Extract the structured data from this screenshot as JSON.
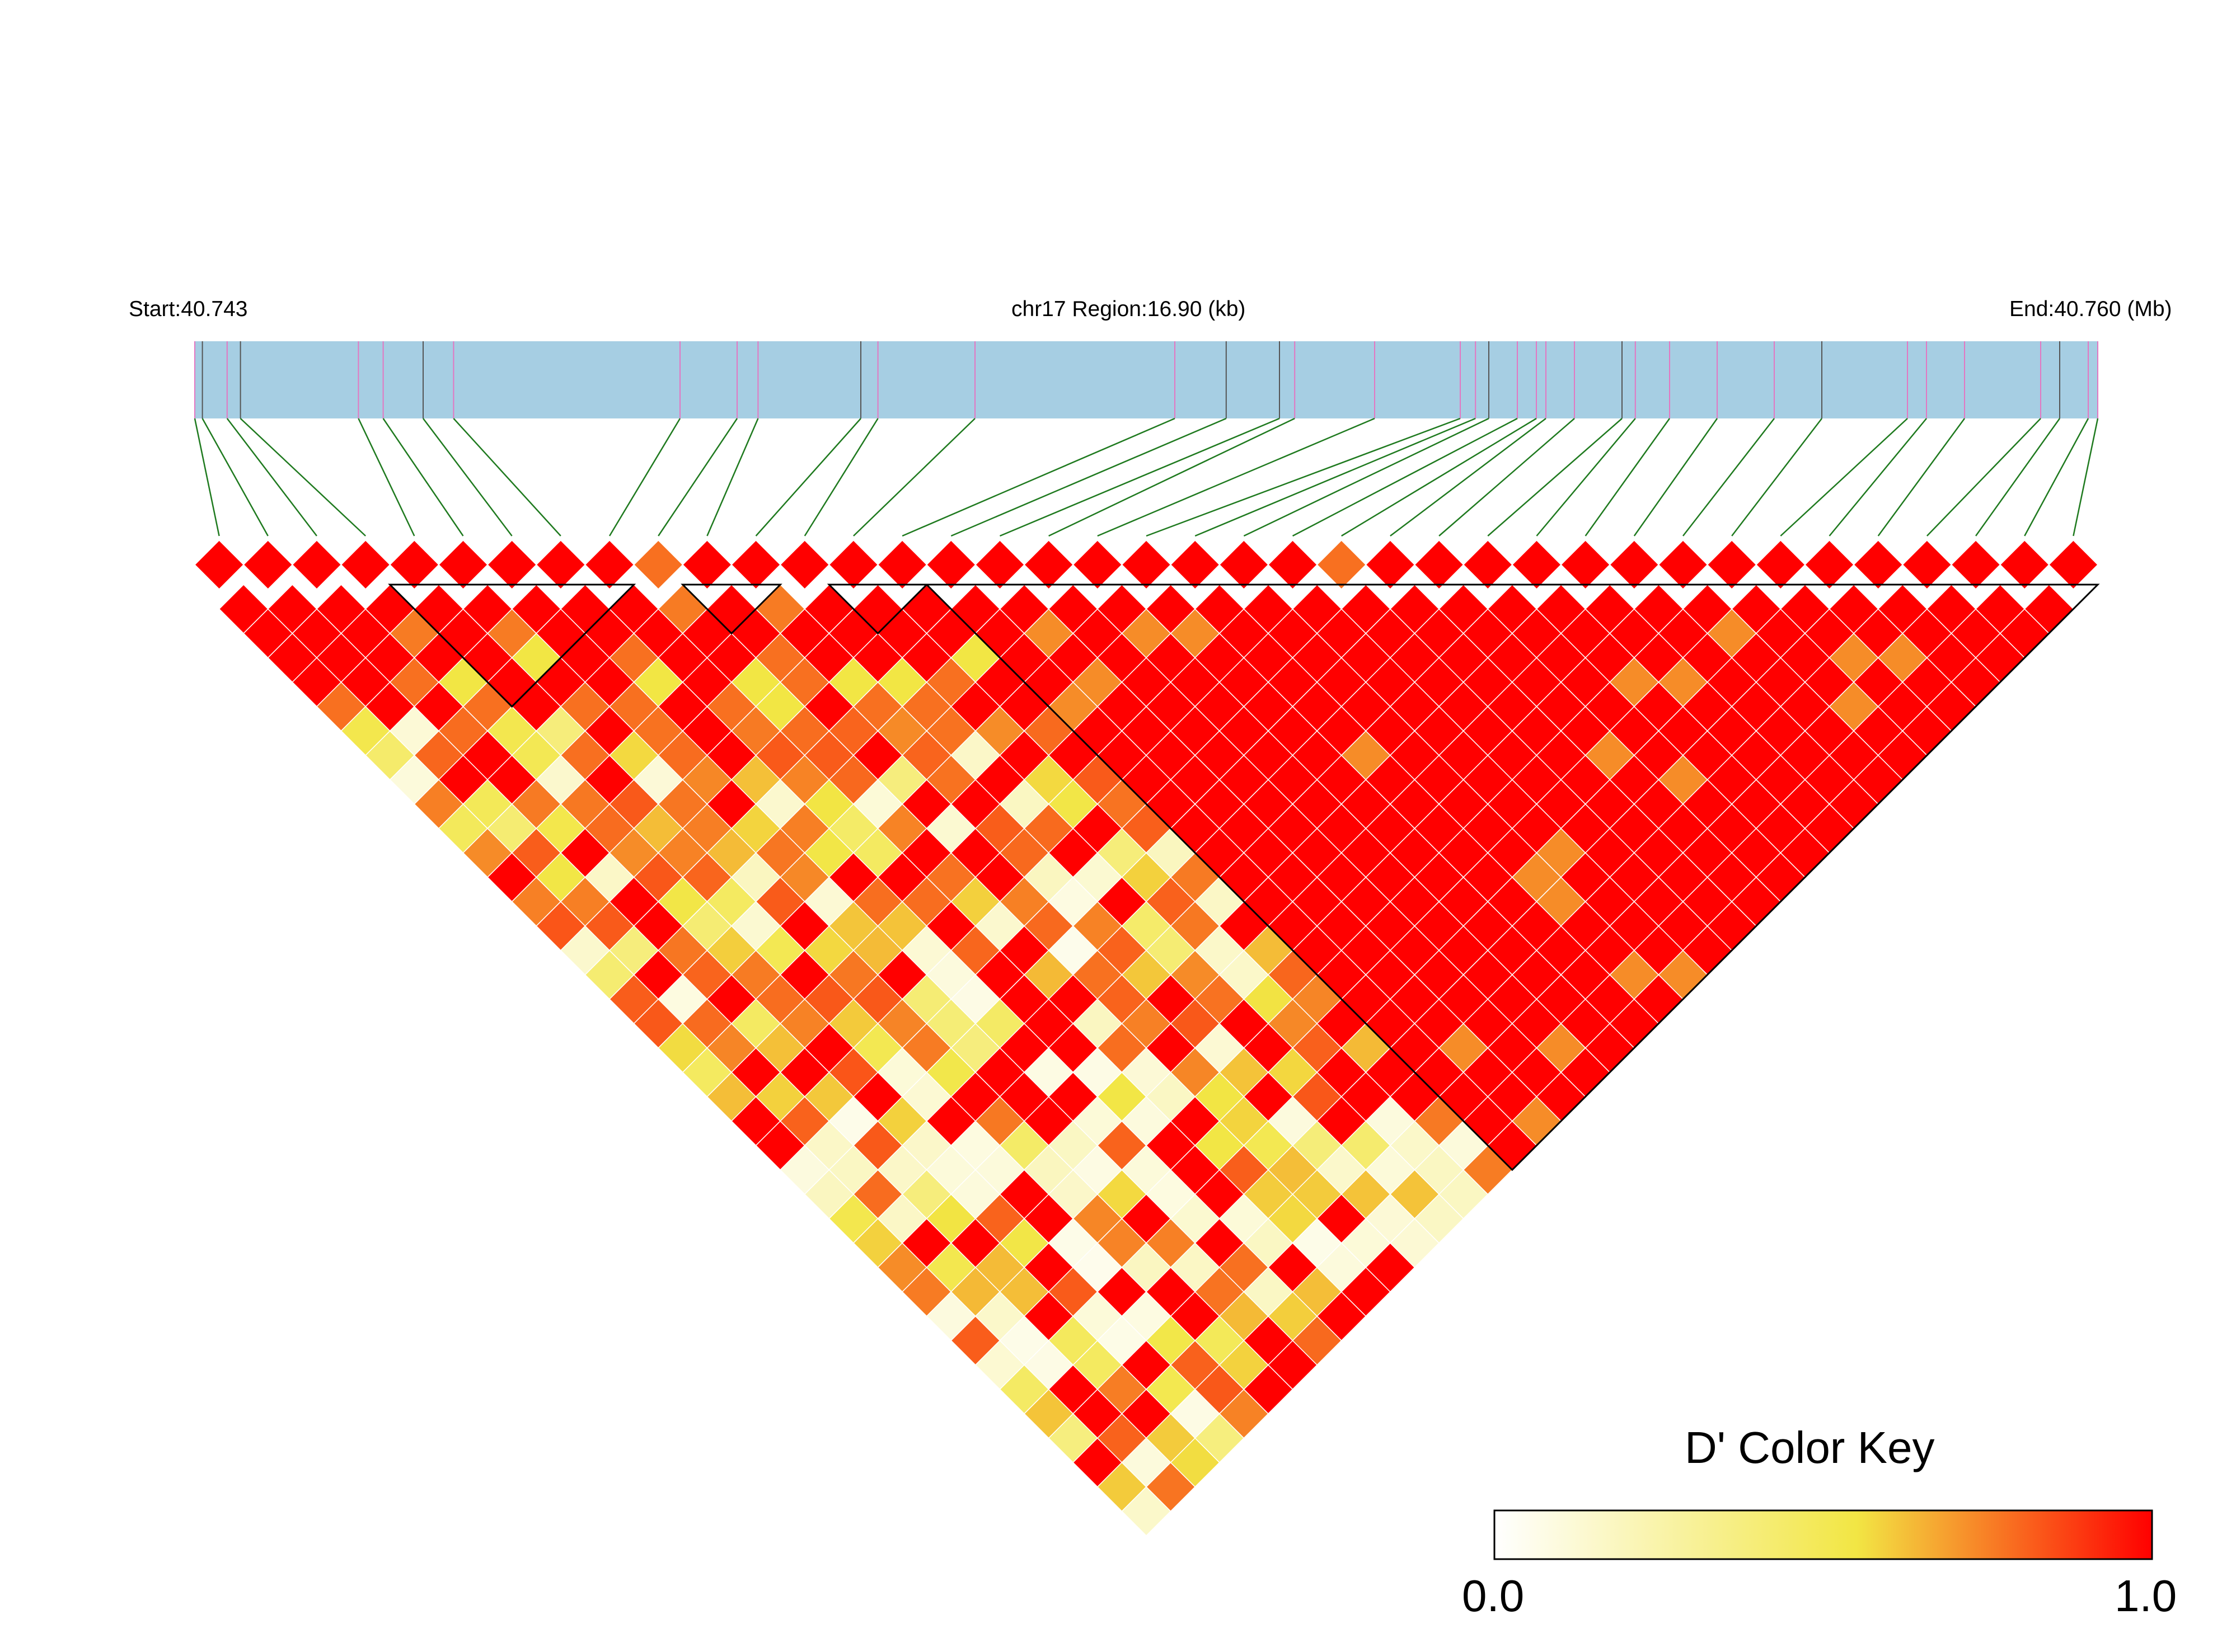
{
  "header": {
    "start_label": "Start:40.743",
    "region_label": "chr17 Region:16.90 (kb)",
    "end_label": "End:40.760 (Mb)"
  },
  "colors": {
    "region_bar": "#a6cee3",
    "snp_tick_pink": "#e377c2",
    "snp_tick_dark": "#555555",
    "connector": "#1f7a1f",
    "block_outline": "#000000",
    "cell_grid": "#ffffff"
  },
  "color_key": {
    "title": "D' Color Key",
    "min_label": "0.0",
    "max_label": "1.0",
    "stops": [
      "#ffffff",
      "#f2e644",
      "#ff0000"
    ]
  },
  "chart_data": {
    "type": "heatmap",
    "description": "LD triangle heatmap of pairwise D' values between SNPs",
    "x_range_mb": [
      40.743,
      40.76
    ],
    "region_kb": 16.9,
    "n_snps": 39,
    "snp_positions_fraction": [
      0.0,
      0.004,
      0.017,
      0.024,
      0.086,
      0.099,
      0.12,
      0.136,
      0.255,
      0.285,
      0.296,
      0.35,
      0.359,
      0.41,
      0.515,
      0.542,
      0.57,
      0.578,
      0.62,
      0.665,
      0.673,
      0.68,
      0.695,
      0.705,
      0.71,
      0.725,
      0.75,
      0.757,
      0.775,
      0.8,
      0.83,
      0.855,
      0.9,
      0.91,
      0.93,
      0.97,
      0.98,
      0.995,
      1.0
    ],
    "haplotype_blocks": [
      {
        "first_snp": 4,
        "last_snp": 8
      },
      {
        "first_snp": 10,
        "last_snp": 11
      },
      {
        "first_snp": 13,
        "last_snp": 14
      },
      {
        "first_snp": 15,
        "last_snp": 38
      }
    ],
    "value_range": [
      0.0,
      1.0
    ],
    "dprime_pattern": {
      "strong_ld_block": "SNPs 15-38 almost all D' = 1.0",
      "weak_ld_region": "Pairs far apart among SNPs 0-20 frequently have low D' (0.0-0.6)"
    }
  }
}
